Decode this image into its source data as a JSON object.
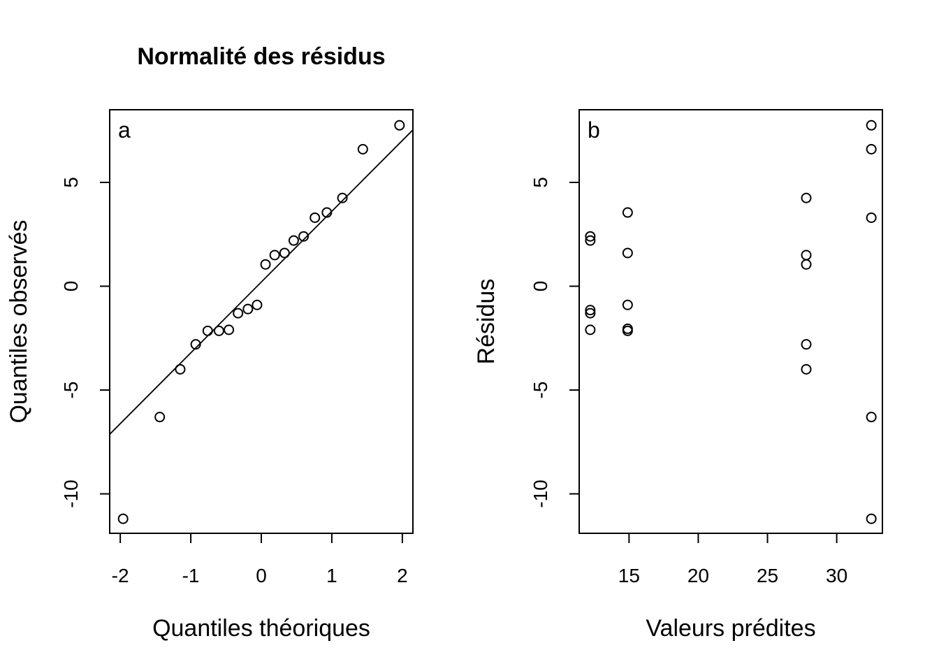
{
  "figure": {
    "title": "Normalité des résidus"
  },
  "chart_data": [
    {
      "type": "scatter",
      "panel_tag": "a",
      "title": "Normalité des résidus",
      "xlabel": "Quantiles théoriques",
      "ylabel": "Quantiles observés",
      "xlim": [
        -2.15,
        2.15
      ],
      "ylim": [
        -11.9,
        8.5
      ],
      "xticks": [
        -2,
        -1,
        0,
        1,
        2
      ],
      "xtick_labels": [
        "-2",
        "-1",
        "0",
        "1",
        "2"
      ],
      "yticks": [
        -10,
        -5,
        0,
        5
      ],
      "ytick_labels": [
        "-10",
        "-5",
        "0",
        "5"
      ],
      "grid": false,
      "series": [
        {
          "marker": "open-circle",
          "x": [
            -1.96,
            -1.44,
            -1.15,
            -0.93,
            -0.76,
            -0.6,
            -0.46,
            -0.33,
            -0.19,
            -0.06,
            0.06,
            0.19,
            0.33,
            0.46,
            0.6,
            0.76,
            0.93,
            1.15,
            1.44,
            1.96
          ],
          "y": [
            -11.2,
            -6.3,
            -4.0,
            -2.8,
            -2.15,
            -2.15,
            -2.1,
            -1.3,
            -1.1,
            -0.9,
            1.05,
            1.5,
            1.6,
            2.2,
            2.4,
            3.3,
            3.55,
            4.25,
            6.6,
            7.75
          ]
        }
      ],
      "reference_line": {
        "type": "qq-line",
        "points": [
          [
            -2.2,
            -7.3
          ],
          [
            2.2,
            7.7
          ]
        ]
      }
    },
    {
      "type": "scatter",
      "panel_tag": "b",
      "xlabel": "Valeurs prédites",
      "ylabel": "Résidus",
      "xlim": [
        11.4,
        33.3
      ],
      "ylim": [
        -11.9,
        8.5
      ],
      "xticks": [
        15,
        20,
        25,
        30
      ],
      "xtick_labels": [
        "15",
        "20",
        "25",
        "30"
      ],
      "yticks": [
        -10,
        -5,
        0,
        5
      ],
      "ytick_labels": [
        "-10",
        "-5",
        "0",
        "5"
      ],
      "grid": false,
      "series": [
        {
          "marker": "open-circle",
          "x": [
            12.2,
            12.2,
            12.2,
            12.2,
            12.2,
            14.9,
            14.9,
            14.9,
            14.9,
            14.9,
            27.8,
            27.8,
            27.8,
            27.8,
            27.8,
            32.5,
            32.5,
            32.5,
            32.5,
            32.5
          ],
          "y": [
            2.4,
            2.2,
            -1.15,
            -1.3,
            -2.1,
            3.55,
            1.6,
            -0.9,
            -2.05,
            -2.15,
            4.25,
            1.5,
            1.05,
            -2.8,
            -4.0,
            7.75,
            6.6,
            3.3,
            -6.3,
            -11.2
          ]
        }
      ]
    }
  ]
}
